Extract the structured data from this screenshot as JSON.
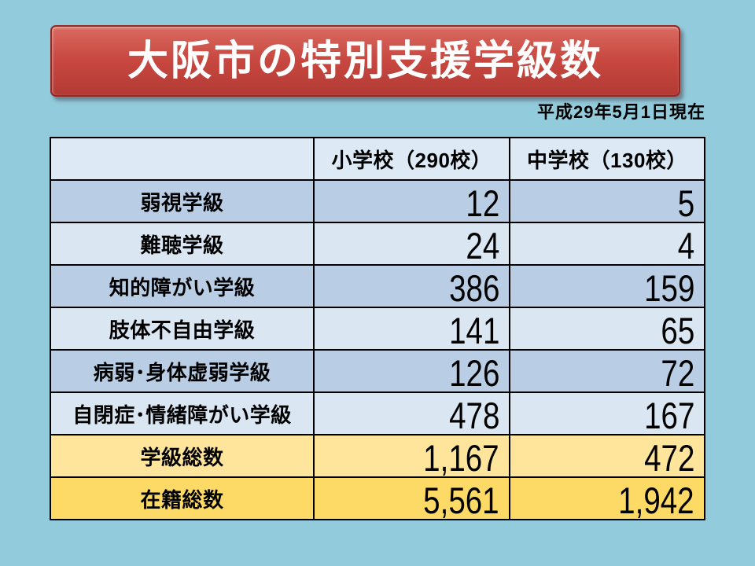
{
  "slide": {
    "title": "大阪市の特別支援学級数",
    "date_note": "平成29年5月1日現在"
  },
  "theme": {
    "bg": "#92cbdb",
    "bannerTop": "#d96a61",
    "bannerMid": "#c84840",
    "bannerBottom": "#b23a34",
    "bannerBorder": "#8f2b26",
    "titleColor": "#ffffff",
    "headerBg": "#dde9f5",
    "rowBlueDark": "#b9cde5",
    "rowBlueLight": "#dae6f2",
    "rowGoldLight": "#ffe49b",
    "rowGoldDark": "#fdd965",
    "borderColor": "#000000",
    "textColor": "#000000"
  },
  "table": {
    "columns": [
      "",
      "小学校（290校）",
      "中学校（130校）"
    ],
    "rows": [
      {
        "label": "弱視学級",
        "elementary": "12",
        "junior_high": "5"
      },
      {
        "label": "難聴学級",
        "elementary": "24",
        "junior_high": "4"
      },
      {
        "label": "知的障がい学級",
        "elementary": "386",
        "junior_high": "159"
      },
      {
        "label": "肢体不自由学級",
        "elementary": "141",
        "junior_high": "65"
      },
      {
        "label": "病弱･身体虚弱学級",
        "elementary": "126",
        "junior_high": "72"
      },
      {
        "label": "自閉症･情緒障がい学級",
        "elementary": "478",
        "junior_high": "167"
      },
      {
        "label": "学級総数",
        "elementary": "1,167",
        "junior_high": "472"
      },
      {
        "label": "在籍総数",
        "elementary": "5,561",
        "junior_high": "1,942"
      }
    ]
  },
  "chart_data": {
    "type": "table",
    "title": "大阪市の特別支援学級数",
    "as_of": "平成29年5月1日現在",
    "columns": [
      "",
      "小学校（290校）",
      "中学校（130校）"
    ],
    "rows": [
      [
        "弱視学級",
        12,
        5
      ],
      [
        "難聴学級",
        24,
        4
      ],
      [
        "知的障がい学級",
        386,
        159
      ],
      [
        "肢体不自由学級",
        141,
        65
      ],
      [
        "病弱･身体虚弱学級",
        126,
        72
      ],
      [
        "自閉症･情緒障がい学級",
        478,
        167
      ],
      [
        "学級総数",
        1167,
        472
      ],
      [
        "在籍総数",
        5561,
        1942
      ]
    ]
  }
}
